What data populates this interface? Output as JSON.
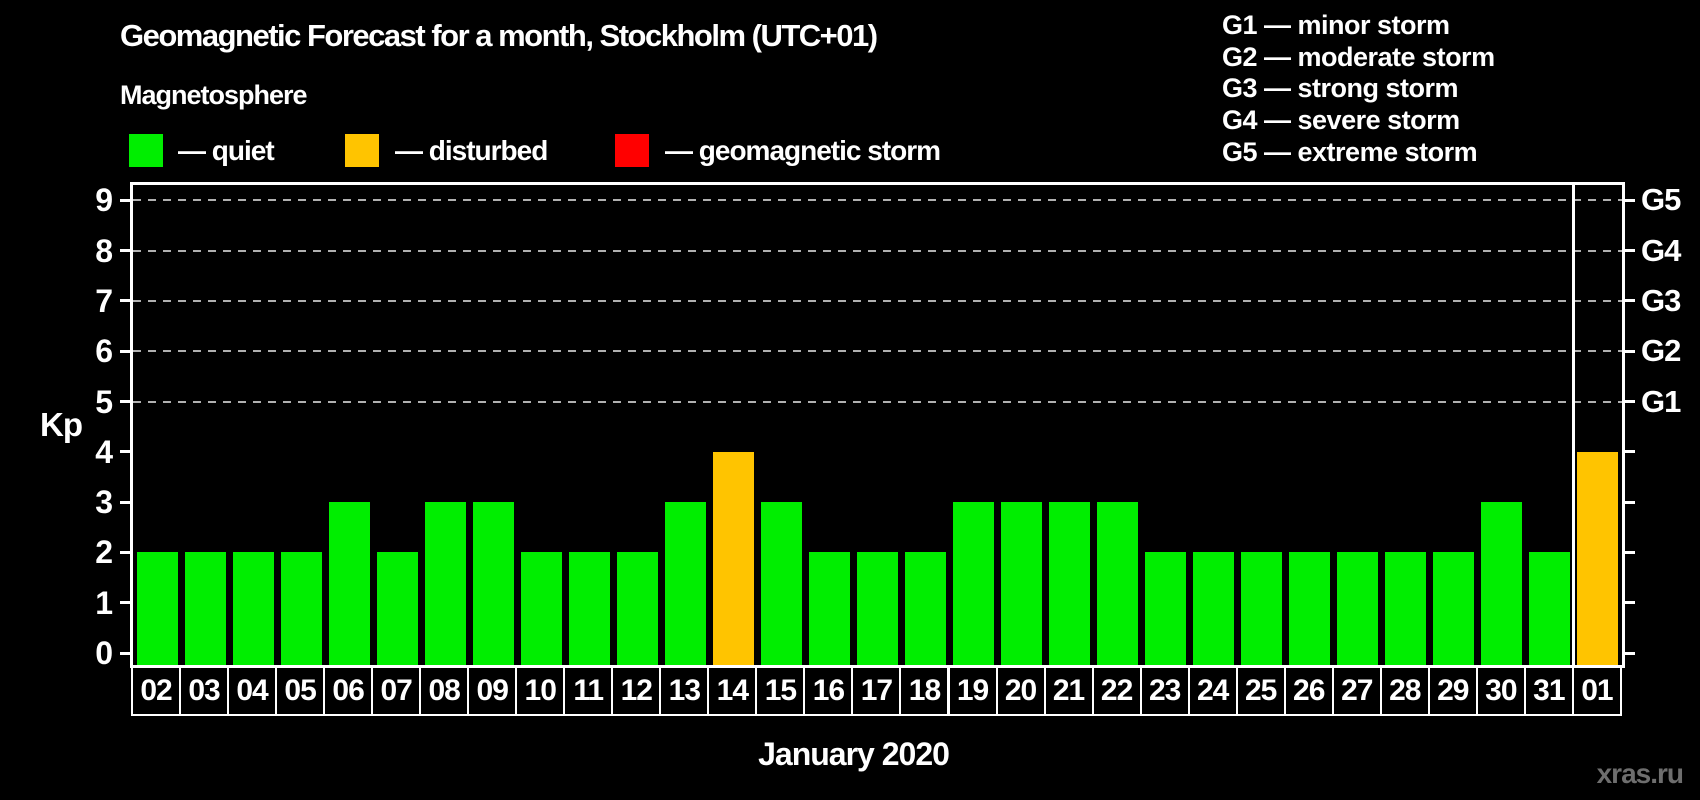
{
  "title": "Geomagnetic Forecast for a month, Stockholm (UTC+01)",
  "subtitle": "Magnetosphere",
  "legend": {
    "items": [
      {
        "label": "— quiet",
        "color": "#00ee00"
      },
      {
        "label": "— disturbed",
        "color": "#ffc400"
      },
      {
        "label": "— geomagnetic storm",
        "color": "#ff0000"
      }
    ]
  },
  "storm_legend": [
    "G1 — minor storm",
    "G2 — moderate storm",
    "G3 — strong storm",
    "G4 — severe storm",
    "G5 — extreme storm"
  ],
  "watermark": "xras.ru",
  "chart_data": {
    "type": "bar",
    "title": "Geomagnetic Forecast for a month, Stockholm (UTC+01)",
    "xlabel": "January 2020",
    "ylabel": "Kp",
    "ylim": [
      0,
      9.3
    ],
    "yticks": [
      0,
      1,
      2,
      3,
      4,
      5,
      6,
      7,
      8,
      9
    ],
    "grid_levels": [
      5,
      6,
      7,
      8,
      9
    ],
    "grid_color": "#b0b0b0",
    "right_axis": [
      {
        "kp": 5,
        "label": "G1"
      },
      {
        "kp": 6,
        "label": "G2"
      },
      {
        "kp": 7,
        "label": "G3"
      },
      {
        "kp": 8,
        "label": "G4"
      },
      {
        "kp": 9,
        "label": "G5"
      }
    ],
    "categories": [
      "02",
      "03",
      "04",
      "05",
      "06",
      "07",
      "08",
      "09",
      "10",
      "11",
      "12",
      "13",
      "14",
      "15",
      "16",
      "17",
      "18",
      "19",
      "20",
      "21",
      "22",
      "23",
      "24",
      "25",
      "26",
      "27",
      "28",
      "29",
      "30",
      "31",
      "01"
    ],
    "values": [
      2,
      2,
      2,
      2,
      3,
      2,
      3,
      3,
      2,
      2,
      2,
      3,
      4,
      3,
      2,
      2,
      2,
      3,
      3,
      3,
      3,
      2,
      2,
      2,
      2,
      2,
      2,
      2,
      3,
      2,
      4
    ],
    "statuses": [
      "quiet",
      "quiet",
      "quiet",
      "quiet",
      "quiet",
      "quiet",
      "quiet",
      "quiet",
      "quiet",
      "quiet",
      "quiet",
      "quiet",
      "disturbed",
      "quiet",
      "quiet",
      "quiet",
      "quiet",
      "quiet",
      "quiet",
      "quiet",
      "quiet",
      "quiet",
      "quiet",
      "quiet",
      "quiet",
      "quiet",
      "quiet",
      "quiet",
      "quiet",
      "quiet",
      "disturbed"
    ],
    "status_colors": {
      "quiet": "#00ee00",
      "disturbed": "#ffc400",
      "storm": "#ff0000"
    },
    "month_boundary_index": 30
  }
}
